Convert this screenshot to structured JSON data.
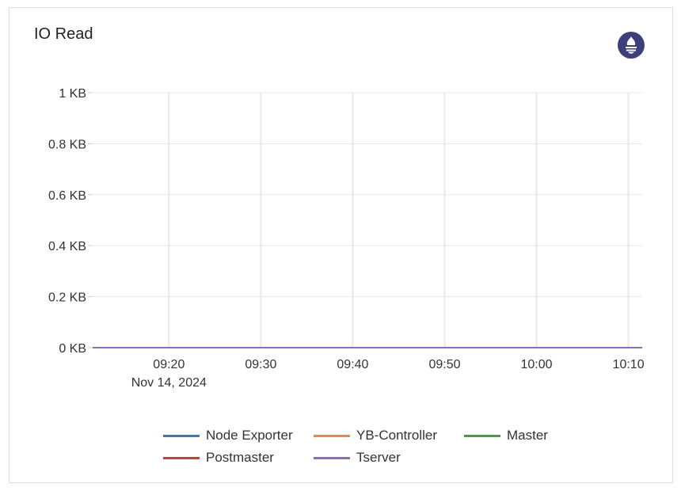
{
  "title": "IO Read",
  "icon": "prometheus-icon",
  "chart_data": {
    "type": "line",
    "title": "IO Read",
    "y_ticks": [
      "0 KB",
      "0.2 KB",
      "0.4 KB",
      "0.6 KB",
      "0.8 KB",
      "1 KB"
    ],
    "y_tick_values": [
      0,
      0.2,
      0.4,
      0.6,
      0.8,
      1
    ],
    "ylim": [
      0,
      1
    ],
    "yunit": "KB",
    "x_ticks": [
      "09:20",
      "09:30",
      "09:40",
      "09:50",
      "10:00",
      "10:10"
    ],
    "x_date_label": "Nov 14, 2024",
    "xlim": [
      "09:11:42",
      "10:11:30"
    ],
    "grid": true,
    "legend_position": "bottom",
    "x": [
      "09:11:42",
      "10:11:30"
    ],
    "series": [
      {
        "name": "Node Exporter",
        "color": "#3f76b8",
        "values": [
          0,
          0
        ]
      },
      {
        "name": "YB-Controller",
        "color": "#f0843c",
        "values": [
          0,
          0
        ]
      },
      {
        "name": "Master",
        "color": "#4b9a3c",
        "values": [
          0,
          0
        ]
      },
      {
        "name": "Postmaster",
        "color": "#d03b35",
        "values": [
          0,
          0
        ]
      },
      {
        "name": "Tserver",
        "color": "#8c6cc0",
        "values": [
          0,
          0
        ]
      }
    ]
  }
}
